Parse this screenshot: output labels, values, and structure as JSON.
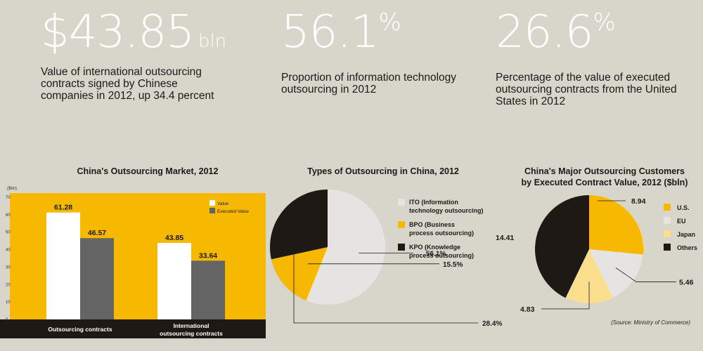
{
  "stats": [
    {
      "value": "$43.85",
      "unit": "bln",
      "pct": "",
      "desc": "Value of international outsourcing contracts signed by Chinese companies in 2012, up 34.4 percent"
    },
    {
      "value": "56.1",
      "unit": "",
      "pct": "%",
      "desc": "Proportion of information technology outsourcing in 2012"
    },
    {
      "value": "26.6",
      "unit": "",
      "pct": "%",
      "desc": "Percentage of the value of executed outsourcing contracts from the United States in 2012"
    }
  ],
  "colors": {
    "yellow": "#f6b800",
    "white": "#ffffff",
    "grey": "#646464",
    "black": "#1e1915",
    "lightgrey": "#e5e4e2",
    "paleyellow": "#fbdf8e",
    "background": "#d8d5cb"
  },
  "chart_data": [
    {
      "type": "bar",
      "title": "China's Outsourcing Market, 2012",
      "ylabel": "($bn)",
      "ylim": [
        0,
        70
      ],
      "yticks": [
        0,
        10,
        20,
        30,
        40,
        50,
        60,
        70
      ],
      "categories": [
        "Outsourcing contracts",
        "International outsourcing contracts"
      ],
      "category_lines": [
        [
          "Outsourcing contracts"
        ],
        [
          "International",
          "outsourcing contracts"
        ]
      ],
      "series": [
        {
          "name": "Value",
          "values": [
            61.28,
            43.85
          ],
          "labels": [
            "61.28",
            "43.85"
          ],
          "color": "#ffffff"
        },
        {
          "name": "Executed Value",
          "values": [
            46.57,
            33.64
          ],
          "labels": [
            "46.57",
            "33.64"
          ],
          "color": "#646464"
        }
      ],
      "legend": "top-right",
      "grid": false
    },
    {
      "type": "pie",
      "title": "Types of Outsourcing in China, 2012",
      "slices": [
        {
          "label": [
            "ITO (Information",
            "technology outsourcing)"
          ],
          "value": 56.1,
          "value_label": "56.1%",
          "color": "#e5e4e2"
        },
        {
          "label": [
            "BPO (Business",
            "process outsourcing)"
          ],
          "value": 15.5,
          "value_label": "15.5%",
          "color": "#f6b800"
        },
        {
          "label": [
            "KPO (Knowledge",
            "process outsourcing)"
          ],
          "value": 28.4,
          "value_label": "28.4%",
          "color": "#1e1915"
        }
      ],
      "legend": "right"
    },
    {
      "type": "pie",
      "title": "China's Major Outsourcing Customers by Executed Contract Value, 2012 ($bln)",
      "title_lines": [
        "China's Major Outsourcing Customers",
        "by Executed Contract Value, 2012 ($bln)"
      ],
      "slices": [
        {
          "label": "U.S.",
          "value": 8.94,
          "value_label": "8.94",
          "color": "#f6b800"
        },
        {
          "label": "EU",
          "value": 5.46,
          "value_label": "5.46",
          "color": "#e5e4e2"
        },
        {
          "label": "Japan",
          "value": 4.83,
          "value_label": "4.83",
          "color": "#fbdf8e"
        },
        {
          "label": "Others",
          "value": 14.41,
          "value_label": "14.41",
          "color": "#1e1915"
        }
      ],
      "legend": "right"
    }
  ],
  "source": "(Source: Ministry of Commerce)"
}
